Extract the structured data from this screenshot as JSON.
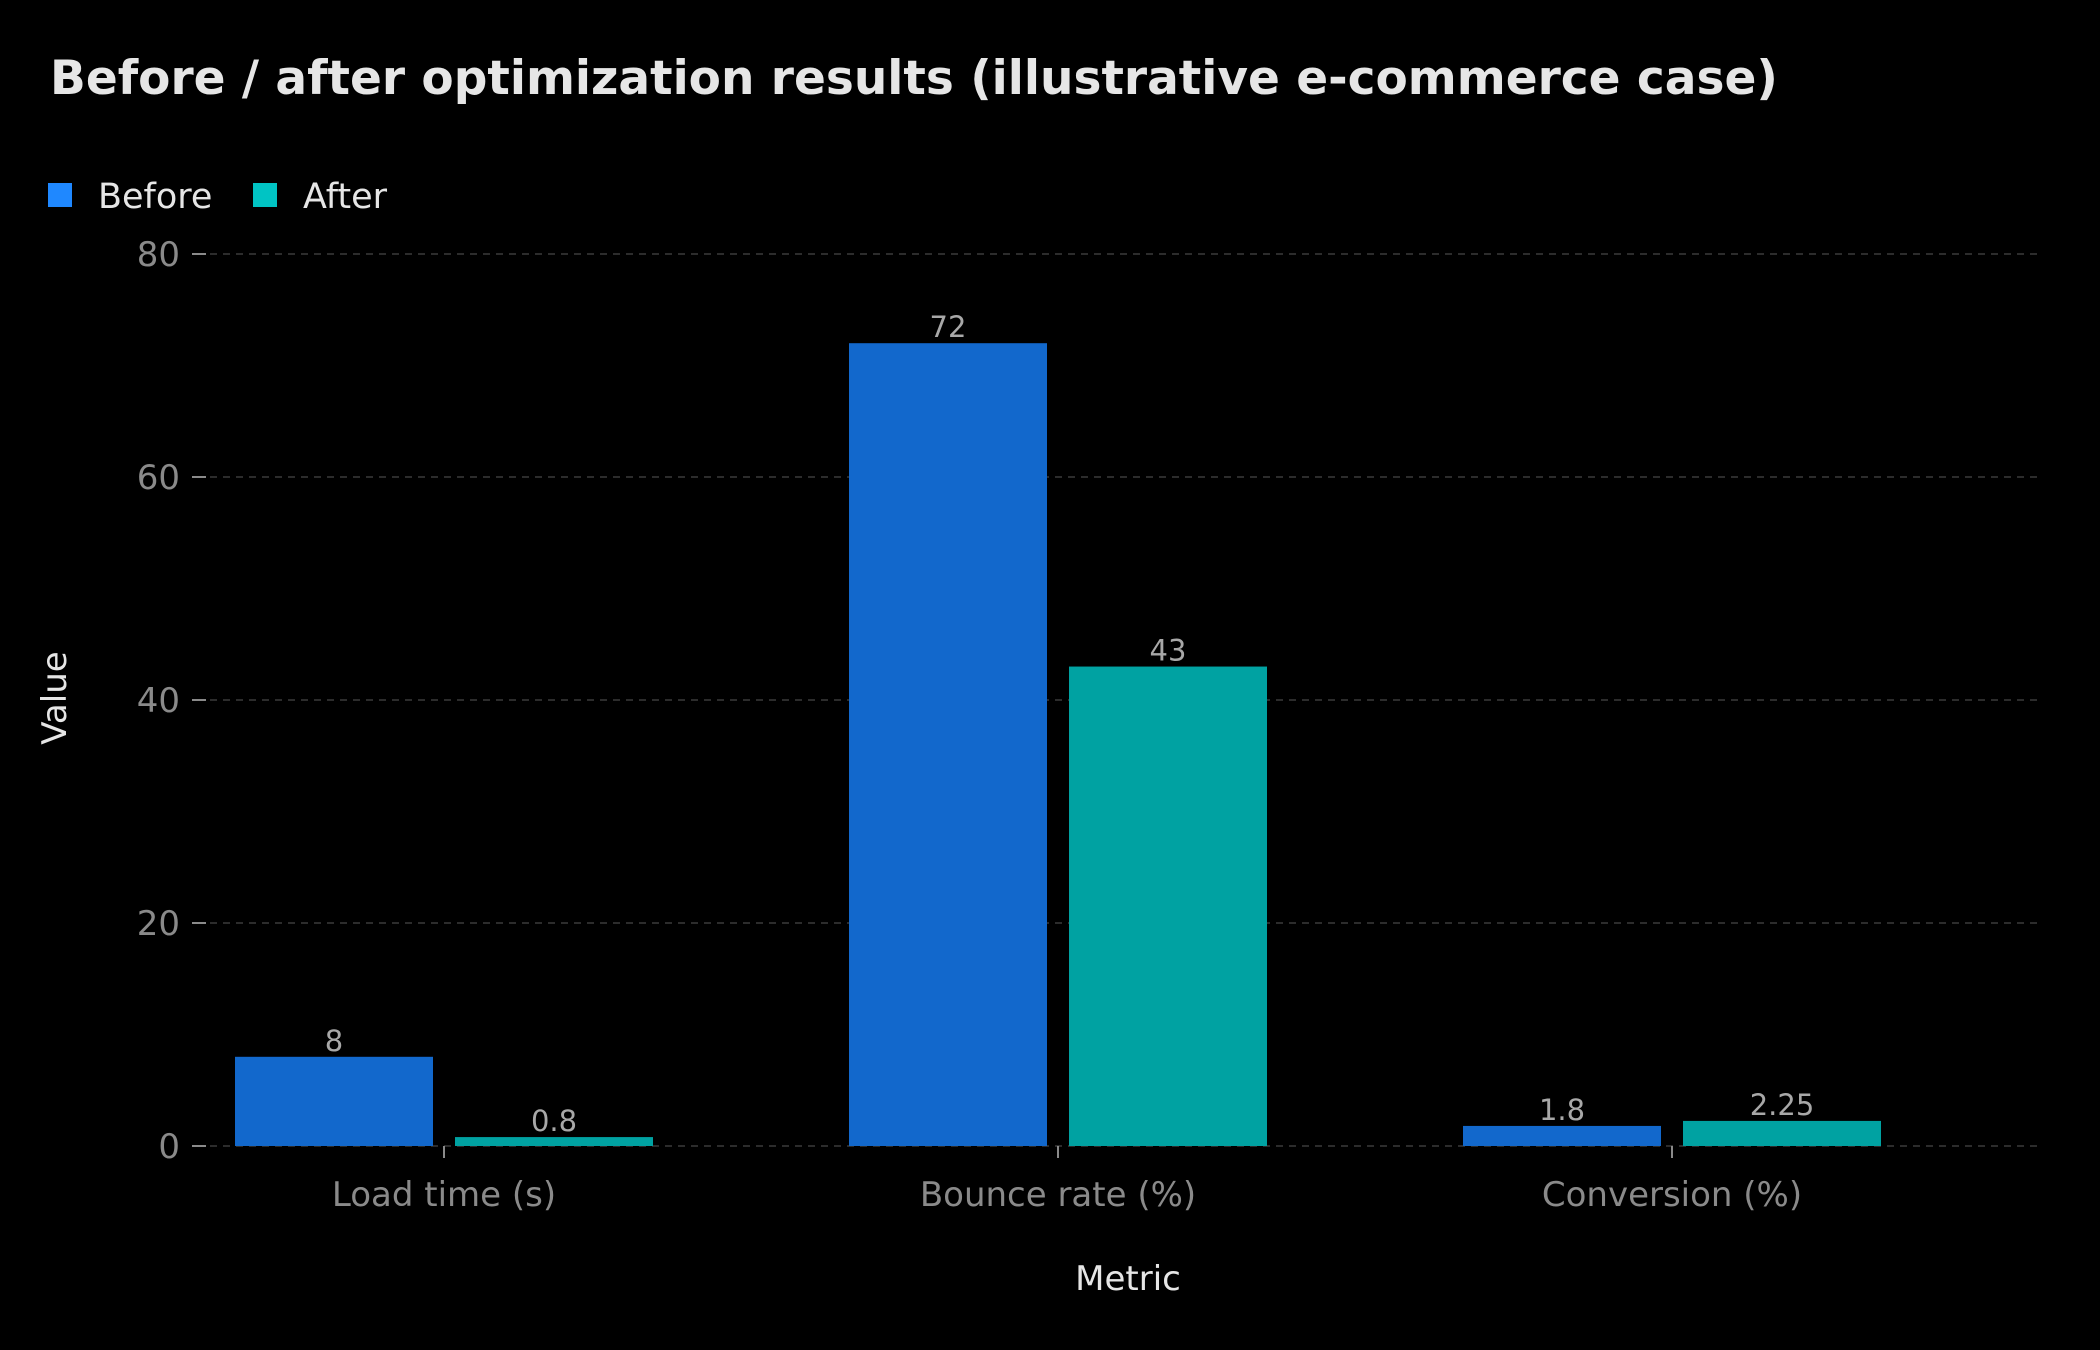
{
  "chart_data": {
    "type": "bar",
    "title": "Before / after optimization results (illustrative e-commerce case)",
    "xlabel": "Metric",
    "ylabel": "Value",
    "categories": [
      "Load time (s)",
      "Bounce rate (%)",
      "Conversion (%)"
    ],
    "series": [
      {
        "name": "Before",
        "color": "#1f88ff",
        "bar_color": "#1268cc",
        "values": [
          8,
          72,
          1.8
        ],
        "labels": [
          "8",
          "72",
          "1.8"
        ]
      },
      {
        "name": "After",
        "color": "#00c4c4",
        "bar_color": "#00a2a2",
        "values": [
          0.8,
          43,
          2.25
        ],
        "labels": [
          "0.8",
          "43",
          "2.25"
        ]
      }
    ],
    "ylim": [
      0,
      80
    ],
    "yticks": [
      0,
      20,
      40,
      60,
      80
    ],
    "ytick_labels": [
      "0",
      "20",
      "40",
      "60",
      "80"
    ],
    "grid": true,
    "legend_position": "top-left",
    "background": "#000000"
  }
}
